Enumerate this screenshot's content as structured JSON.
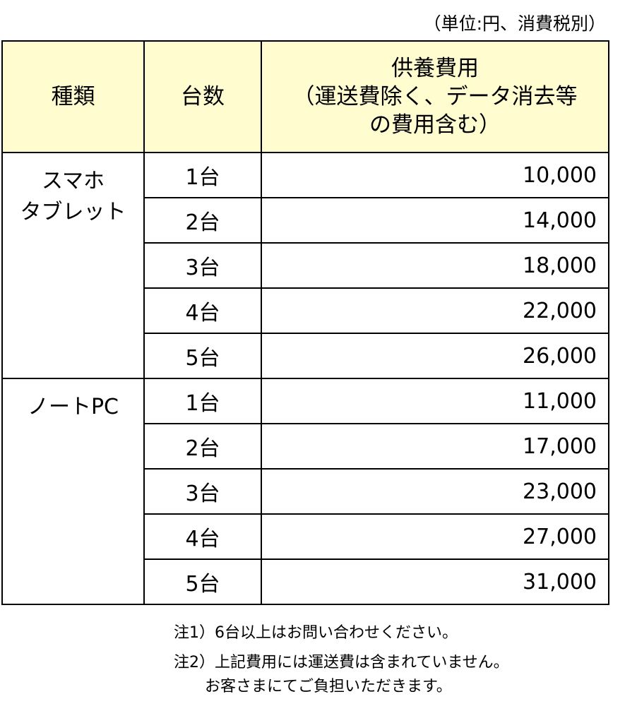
{
  "unit_note": "（単位:円、消費税別）",
  "headers": {
    "type": "種類",
    "count": "台数",
    "cost_line1": "供養費用",
    "cost_line2": "（運送費除く、データ消去等",
    "cost_line3": "の費用含む）"
  },
  "groups": [
    {
      "category_line1": "スマホ",
      "category_line2": "タブレット",
      "rows": [
        {
          "count": "1台",
          "cost": "10,000"
        },
        {
          "count": "2台",
          "cost": "14,000"
        },
        {
          "count": "3台",
          "cost": "18,000"
        },
        {
          "count": "4台",
          "cost": "22,000"
        },
        {
          "count": "5台",
          "cost": "26,000"
        }
      ]
    },
    {
      "category_line1": "ノートPC",
      "category_line2": "",
      "rows": [
        {
          "count": "1台",
          "cost": "11,000"
        },
        {
          "count": "2台",
          "cost": "17,000"
        },
        {
          "count": "3台",
          "cost": "23,000"
        },
        {
          "count": "4台",
          "cost": "27,000"
        },
        {
          "count": "5台",
          "cost": "31,000"
        }
      ]
    }
  ],
  "notes": {
    "note1": "注1）6台以上はお問い合わせください。",
    "note2_line1": "注2）上記費用には運送費は含まれていません。",
    "note2_line2": "　　お客さまにてご負担いただきます。"
  },
  "colors": {
    "header_bg": "#fffdd0",
    "border": "#000000"
  }
}
